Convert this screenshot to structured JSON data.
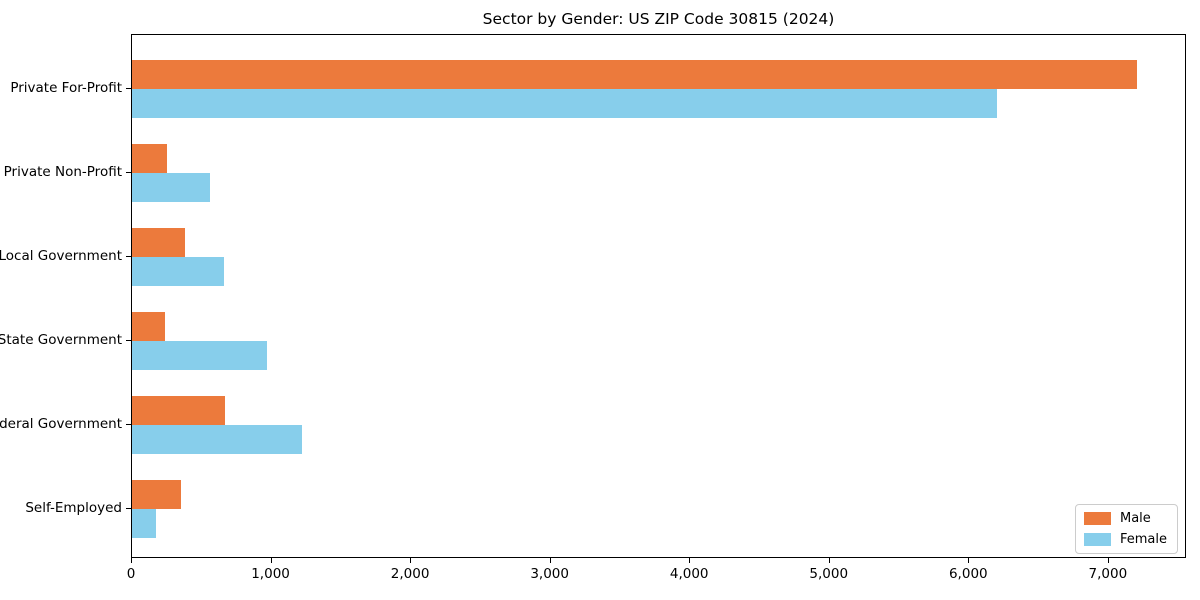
{
  "chart_data": {
    "type": "bar",
    "orientation": "horizontal",
    "title": "Sector by Gender: US ZIP Code 30815 (2024)",
    "categories": [
      "Private For-Profit",
      "Private Non-Profit",
      "Local Government",
      "State Government",
      "Federal Government",
      "Self-Employed"
    ],
    "series": [
      {
        "name": "Male",
        "color": "#EC7A3C",
        "values": [
          7200,
          250,
          380,
          240,
          670,
          350
        ]
      },
      {
        "name": "Female",
        "color": "#87CEEB",
        "values": [
          6200,
          560,
          660,
          970,
          1220,
          170
        ]
      }
    ],
    "xlabel": "",
    "ylabel": "",
    "xlim": [
      0,
      7560
    ],
    "xticks": [
      0,
      1000,
      2000,
      3000,
      4000,
      5000,
      6000,
      7000
    ],
    "xtick_labels": [
      "0",
      "1,000",
      "2,000",
      "3,000",
      "4,000",
      "5,000",
      "6,000",
      "7,000"
    ],
    "grid": false,
    "legend": {
      "position": "lower right",
      "entries": [
        "Male",
        "Female"
      ]
    },
    "colors": {
      "male": "#EC7A3C",
      "female": "#87CEEB",
      "spine": "#000000",
      "text": "#000000",
      "legend_border": "#cccccc"
    }
  }
}
